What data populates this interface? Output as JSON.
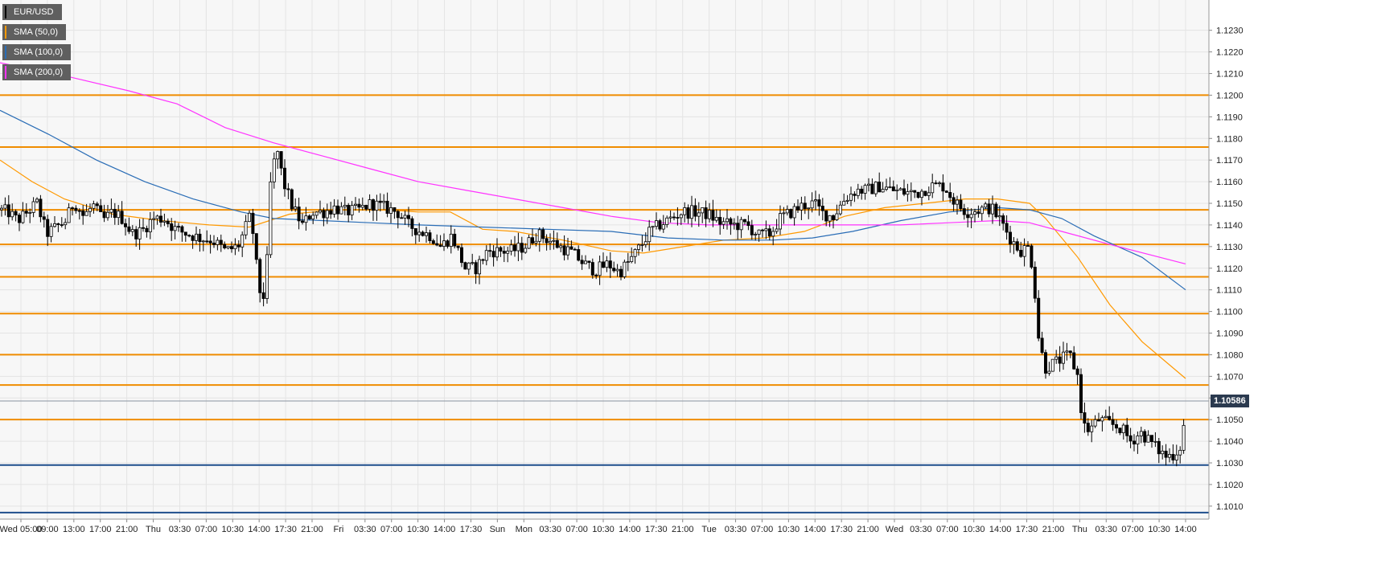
{
  "legend": {
    "symbol": "EUR/USD",
    "sma50": "SMA (50,0)",
    "sma100": "SMA (100,0)",
    "sma200": "SMA (200,0)"
  },
  "colors": {
    "background": "#f7f7f7",
    "grid": "#e4e4e4",
    "candle_up": "#ffffff",
    "candle_down": "#000000",
    "sma50": "#ff9900",
    "sma100": "#2a6db6",
    "sma200": "#ff33ff",
    "level_orange": "#f08c00",
    "level_blue": "#1f4e8c",
    "current_price_line": "#8a93a0",
    "current_price_tag": "#2b3a4f"
  },
  "current_price": {
    "label": "1.10586",
    "value": 1.10586
  },
  "chart_data": {
    "type": "candlestick",
    "symbol": "EUR/USD",
    "ylim": [
      1.1004,
      1.1244
    ],
    "y_ticks": [
      "1.1010",
      "1.1020",
      "1.1030",
      "1.1040",
      "1.1050",
      "1.1060",
      "1.1070",
      "1.1080",
      "1.1090",
      "1.1100",
      "1.1110",
      "1.1120",
      "1.1130",
      "1.1140",
      "1.1150",
      "1.1160",
      "1.1170",
      "1.1180",
      "1.1190",
      "1.1200",
      "1.1210",
      "1.1220",
      "1.1230"
    ],
    "x_ticks": [
      "Wed 05:00",
      "09:00",
      "13:00",
      "17:00",
      "21:00",
      "Thu",
      "03:30",
      "07:00",
      "10:30",
      "14:00",
      "17:30",
      "21:00",
      "Fri",
      "03:30",
      "07:00",
      "10:30",
      "14:00",
      "17:30",
      "Sun",
      "Mon",
      "03:30",
      "07:00",
      "10:30",
      "14:00",
      "17:30",
      "21:00",
      "Tue",
      "03:30",
      "07:00",
      "10:30",
      "14:00",
      "17:30",
      "21:00",
      "Wed",
      "03:30",
      "07:00",
      "10:30",
      "14:00",
      "17:30",
      "21:00",
      "Thu",
      "03:30",
      "07:00",
      "10:30",
      "14:00"
    ],
    "horizontal_levels": [
      {
        "value": 1.12,
        "color": "orange"
      },
      {
        "value": 1.1176,
        "color": "orange"
      },
      {
        "value": 1.1147,
        "color": "orange"
      },
      {
        "value": 1.1131,
        "color": "orange"
      },
      {
        "value": 1.1116,
        "color": "orange"
      },
      {
        "value": 1.1099,
        "color": "orange"
      },
      {
        "value": 1.108,
        "color": "orange"
      },
      {
        "value": 1.1066,
        "color": "orange"
      },
      {
        "value": 1.105,
        "color": "orange"
      },
      {
        "value": 1.1029,
        "color": "blue"
      },
      {
        "value": 1.1007,
        "color": "blue"
      }
    ],
    "candles_anchor": [
      [
        0,
        1.1147
      ],
      [
        10,
        1.1146
      ],
      [
        22,
        1.1142
      ],
      [
        34,
        1.1146
      ],
      [
        46,
        1.115
      ],
      [
        58,
        1.1136
      ],
      [
        70,
        1.1139
      ],
      [
        82,
        1.1142
      ],
      [
        92,
        1.1151
      ],
      [
        104,
        1.1144
      ],
      [
        116,
        1.1149
      ],
      [
        128,
        1.1142
      ],
      [
        140,
        1.1146
      ],
      [
        152,
        1.1143
      ],
      [
        164,
        1.1136
      ],
      [
        176,
        1.1137
      ],
      [
        190,
        1.1143
      ],
      [
        204,
        1.1143
      ],
      [
        218,
        1.1138
      ],
      [
        232,
        1.1136
      ],
      [
        248,
        1.1134
      ],
      [
        264,
        1.1133
      ],
      [
        280,
        1.1128
      ],
      [
        296,
        1.113
      ],
      [
        312,
        1.1145
      ],
      [
        322,
        1.111
      ],
      [
        330,
        1.1106
      ],
      [
        336,
        1.1158
      ],
      [
        344,
        1.1176
      ],
      [
        352,
        1.116
      ],
      [
        364,
        1.1148
      ],
      [
        376,
        1.114
      ],
      [
        388,
        1.1146
      ],
      [
        402,
        1.1146
      ],
      [
        416,
        1.1148
      ],
      [
        430,
        1.1146
      ],
      [
        446,
        1.1147
      ],
      [
        462,
        1.115
      ],
      [
        478,
        1.1148
      ],
      [
        494,
        1.1146
      ],
      [
        508,
        1.114
      ],
      [
        522,
        1.1137
      ],
      [
        536,
        1.1135
      ],
      [
        548,
        1.113
      ],
      [
        562,
        1.1135
      ],
      [
        578,
        1.112
      ],
      [
        592,
        1.112
      ],
      [
        606,
        1.1128
      ],
      [
        620,
        1.1128
      ],
      [
        636,
        1.1128
      ],
      [
        652,
        1.113
      ],
      [
        668,
        1.1136
      ],
      [
        682,
        1.1133
      ],
      [
        696,
        1.113
      ],
      [
        712,
        1.1127
      ],
      [
        726,
        1.1122
      ],
      [
        740,
        1.1119
      ],
      [
        756,
        1.1122
      ],
      [
        770,
        1.1118
      ],
      [
        784,
        1.1124
      ],
      [
        796,
        1.113
      ],
      [
        808,
        1.1137
      ],
      [
        820,
        1.114
      ],
      [
        834,
        1.1143
      ],
      [
        848,
        1.1146
      ],
      [
        864,
        1.1146
      ],
      [
        880,
        1.1145
      ],
      [
        896,
        1.1141
      ],
      [
        912,
        1.114
      ],
      [
        928,
        1.114
      ],
      [
        944,
        1.1135
      ],
      [
        958,
        1.1136
      ],
      [
        970,
        1.1143
      ],
      [
        984,
        1.1146
      ],
      [
        998,
        1.1149
      ],
      [
        1012,
        1.115
      ],
      [
        1024,
        1.1145
      ],
      [
        1036,
        1.1144
      ],
      [
        1050,
        1.1152
      ],
      [
        1064,
        1.1156
      ],
      [
        1078,
        1.1156
      ],
      [
        1094,
        1.1158
      ],
      [
        1110,
        1.1156
      ],
      [
        1126,
        1.1155
      ],
      [
        1142,
        1.1155
      ],
      [
        1158,
        1.1158
      ],
      [
        1174,
        1.1158
      ],
      [
        1188,
        1.115
      ],
      [
        1202,
        1.1146
      ],
      [
        1216,
        1.1147
      ],
      [
        1232,
        1.1148
      ],
      [
        1244,
        1.1142
      ],
      [
        1256,
        1.1134
      ],
      [
        1268,
        1.1128
      ],
      [
        1280,
        1.113
      ],
      [
        1286,
        1.1112
      ],
      [
        1292,
        1.1085
      ],
      [
        1300,
        1.1074
      ],
      [
        1310,
        1.1076
      ],
      [
        1320,
        1.1078
      ],
      [
        1330,
        1.108
      ],
      [
        1340,
        1.107
      ],
      [
        1346,
        1.1048
      ],
      [
        1354,
        1.1045
      ],
      [
        1366,
        1.105
      ],
      [
        1380,
        1.1048
      ],
      [
        1394,
        1.1046
      ],
      [
        1406,
        1.104
      ],
      [
        1418,
        1.1044
      ],
      [
        1430,
        1.104
      ],
      [
        1440,
        1.1036
      ],
      [
        1450,
        1.1033
      ],
      [
        1460,
        1.1034
      ],
      [
        1468,
        1.1038
      ],
      [
        1476,
        1.1058
      ]
    ],
    "series": [
      {
        "name": "SMA (50,0)",
        "color": "#ff9900",
        "points": [
          [
            0,
            1.117
          ],
          [
            40,
            1.116
          ],
          [
            80,
            1.1152
          ],
          [
            140,
            1.1145
          ],
          [
            200,
            1.1142
          ],
          [
            260,
            1.114
          ],
          [
            310,
            1.1139
          ],
          [
            360,
            1.1145
          ],
          [
            420,
            1.1147
          ],
          [
            480,
            1.1147
          ],
          [
            520,
            1.1146
          ],
          [
            560,
            1.1146
          ],
          [
            600,
            1.1138
          ],
          [
            640,
            1.1137
          ],
          [
            700,
            1.1133
          ],
          [
            760,
            1.1128
          ],
          [
            800,
            1.1127
          ],
          [
            850,
            1.113
          ],
          [
            900,
            1.1133
          ],
          [
            950,
            1.1134
          ],
          [
            1000,
            1.1137
          ],
          [
            1050,
            1.1144
          ],
          [
            1100,
            1.1148
          ],
          [
            1150,
            1.115
          ],
          [
            1200,
            1.1152
          ],
          [
            1240,
            1.1152
          ],
          [
            1280,
            1.115
          ],
          [
            1300,
            1.1143
          ],
          [
            1340,
            1.1125
          ],
          [
            1380,
            1.1103
          ],
          [
            1420,
            1.1086
          ],
          [
            1474,
            1.1069
          ]
        ]
      },
      {
        "name": "SMA (100,0)",
        "color": "#2a6db6",
        "points": [
          [
            0,
            1.1193
          ],
          [
            60,
            1.1182
          ],
          [
            120,
            1.117
          ],
          [
            180,
            1.116
          ],
          [
            240,
            1.1152
          ],
          [
            300,
            1.1146
          ],
          [
            340,
            1.1143
          ],
          [
            400,
            1.1142
          ],
          [
            460,
            1.1141
          ],
          [
            520,
            1.114
          ],
          [
            600,
            1.1139
          ],
          [
            680,
            1.1138
          ],
          [
            760,
            1.1137
          ],
          [
            830,
            1.1134
          ],
          [
            900,
            1.1133
          ],
          [
            960,
            1.1133
          ],
          [
            1010,
            1.1134
          ],
          [
            1060,
            1.1137
          ],
          [
            1120,
            1.1142
          ],
          [
            1180,
            1.1146
          ],
          [
            1240,
            1.1148
          ],
          [
            1280,
            1.1147
          ],
          [
            1320,
            1.1143
          ],
          [
            1360,
            1.1135
          ],
          [
            1420,
            1.1125
          ],
          [
            1474,
            1.111
          ]
        ]
      },
      {
        "name": "SMA (200,0)",
        "color": "#ff33ff",
        "points": [
          [
            0,
            1.1215
          ],
          [
            80,
            1.1209
          ],
          [
            160,
            1.1202
          ],
          [
            220,
            1.1196
          ],
          [
            280,
            1.1185
          ],
          [
            340,
            1.1178
          ],
          [
            400,
            1.1172
          ],
          [
            460,
            1.1166
          ],
          [
            520,
            1.116
          ],
          [
            580,
            1.1156
          ],
          [
            640,
            1.1152
          ],
          [
            700,
            1.1148
          ],
          [
            760,
            1.1144
          ],
          [
            820,
            1.1141
          ],
          [
            880,
            1.114
          ],
          [
            940,
            1.114
          ],
          [
            1000,
            1.114
          ],
          [
            1060,
            1.114
          ],
          [
            1120,
            1.114
          ],
          [
            1180,
            1.1141
          ],
          [
            1240,
            1.1142
          ],
          [
            1280,
            1.1141
          ],
          [
            1320,
            1.1137
          ],
          [
            1380,
            1.1131
          ],
          [
            1474,
            1.1122
          ]
        ]
      }
    ]
  }
}
